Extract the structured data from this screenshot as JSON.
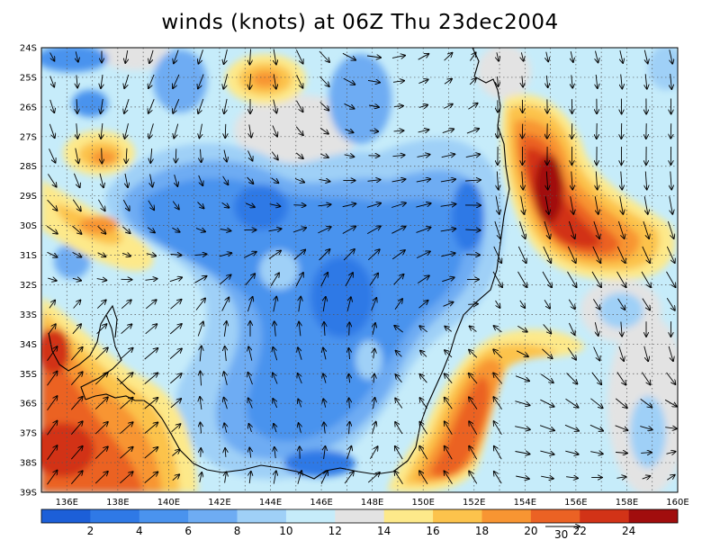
{
  "title": "winds (knots) at 06Z Thu 23dec2004",
  "map": {
    "lon_range": [
      135,
      160
    ],
    "lat_range": [
      -39,
      -24
    ],
    "lon_ticks": [
      "136E",
      "138E",
      "140E",
      "142E",
      "144E",
      "146E",
      "148E",
      "150E",
      "152E",
      "154E",
      "156E",
      "158E",
      "160E"
    ],
    "lat_ticks": [
      "24S",
      "25S",
      "26S",
      "27S",
      "28S",
      "29S",
      "30S",
      "31S",
      "32S",
      "33S",
      "34S",
      "35S",
      "36S",
      "37S",
      "38S",
      "39S"
    ],
    "grid": "dotted",
    "coastline": "black",
    "vectors": "wind arrows"
  },
  "colorbar": {
    "labels": [
      "2",
      "4",
      "6",
      "8",
      "10",
      "12",
      "14",
      "16",
      "18",
      "20",
      "22",
      "24"
    ],
    "colors": [
      "#1c5fd8",
      "#2f79e6",
      "#4a93ee",
      "#6eacf3",
      "#9fd0f7",
      "#c6ecfa",
      "#e3e3e3",
      "#fde98a",
      "#fcc34c",
      "#f89532",
      "#eb6224",
      "#d23317",
      "#a10d0d"
    ],
    "vector_key": "30"
  }
}
